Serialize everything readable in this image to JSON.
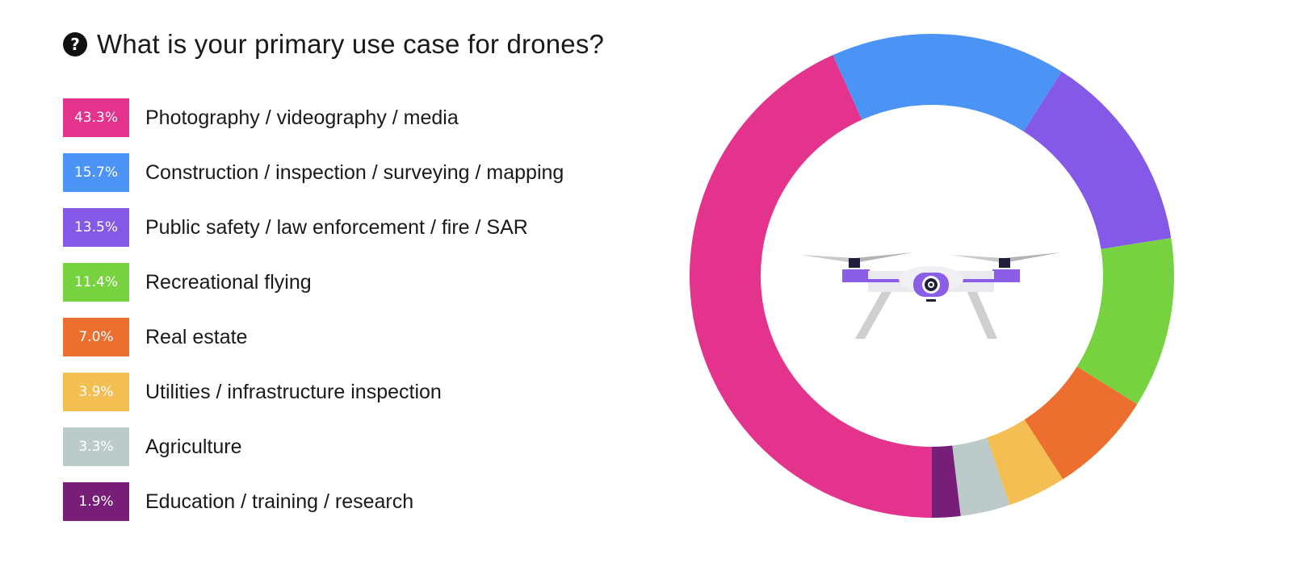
{
  "header": {
    "icon": "question-circle-icon",
    "icon_glyph": "?",
    "title": "What is your primary use case for drones?"
  },
  "chart_data": {
    "type": "pie",
    "style": "donut",
    "title": "What is your primary use case for drones?",
    "unit": "%",
    "start_angle_deg": -180,
    "center_icon": "drone-icon",
    "series": [
      {
        "label": "Photography / videography / media",
        "display": "43.3%",
        "value": 43.3,
        "color": "#E3338D"
      },
      {
        "label": "Construction / inspection / surveying / mapping",
        "display": "15.7%",
        "value": 15.7,
        "color": "#4B93F5"
      },
      {
        "label": "Public safety / law enforcement / fire / SAR",
        "display": "13.5%",
        "value": 13.5,
        "color": "#8459E8"
      },
      {
        "label": "Recreational flying",
        "display": "11.4%",
        "value": 11.4,
        "color": "#77D23F"
      },
      {
        "label": "Real estate",
        "display": "7.0%",
        "value": 7.0,
        "color": "#EC6F2F"
      },
      {
        "label": "Utilities / infrastructure inspection",
        "display": "3.9%",
        "value": 3.9,
        "color": "#F3BF52"
      },
      {
        "label": "Agriculture",
        "display": "3.3%",
        "value": 3.3,
        "color": "#BDCACA"
      },
      {
        "label": "Education / training / research",
        "display": "1.9%",
        "value": 1.9,
        "color": "#761E78"
      }
    ]
  }
}
